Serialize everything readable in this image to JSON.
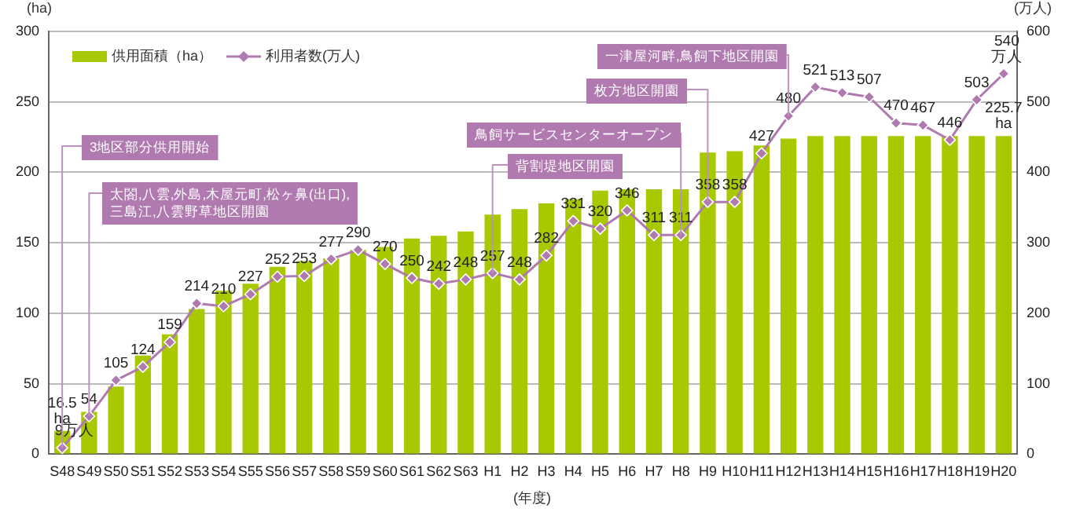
{
  "chart_data": {
    "type": "bar",
    "ylabel": "(ha)",
    "y2label": "(万人)",
    "xlabel": "(年度)",
    "categories": [
      "S48",
      "S49",
      "S50",
      "S51",
      "S52",
      "S53",
      "S54",
      "S55",
      "S56",
      "S57",
      "S58",
      "S59",
      "S60",
      "S61",
      "S62",
      "S63",
      "H1",
      "H2",
      "H3",
      "H4",
      "H5",
      "H6",
      "H7",
      "H8",
      "H9",
      "H10",
      "H11",
      "H12",
      "H13",
      "H14",
      "H15",
      "H16",
      "H17",
      "H18",
      "H19",
      "H20"
    ],
    "series": [
      {
        "name": "供用面積（ha）",
        "color": "#a8c800",
        "values": [
          16.5,
          30,
          48,
          70,
          85,
          103,
          116,
          121,
          133,
          137,
          139,
          145,
          147,
          153,
          155,
          158,
          170,
          174,
          178,
          181,
          187,
          188,
          188,
          188,
          214,
          215,
          219,
          224,
          225.7,
          225.7,
          225.7,
          225.7,
          225.7,
          225.7,
          225.7,
          225.7
        ],
        "value_labels": [
          "16.5 ha",
          null,
          null,
          null,
          null,
          null,
          null,
          null,
          null,
          null,
          null,
          null,
          null,
          null,
          null,
          null,
          null,
          null,
          null,
          null,
          null,
          null,
          null,
          null,
          null,
          null,
          null,
          null,
          null,
          null,
          null,
          null,
          null,
          null,
          null,
          "225.7 ha"
        ]
      },
      {
        "name": "利用者数(万人)",
        "type": "line",
        "axis": "y2",
        "color": "#b07ab0",
        "values": [
          9,
          54,
          105,
          124,
          159,
          214,
          210,
          227,
          252,
          253,
          277,
          290,
          270,
          250,
          242,
          248,
          257,
          248,
          282,
          331,
          320,
          346,
          311,
          311,
          358,
          358,
          427,
          480,
          521,
          513,
          507,
          470,
          467,
          446,
          503,
          540
        ],
        "value_labels": [
          "9万人",
          "54",
          "105",
          "124",
          "159",
          "214",
          "210",
          "227",
          "252",
          "253",
          "277",
          "290",
          "270",
          "250",
          "242",
          "248",
          "257",
          "248",
          "282",
          "331",
          "320",
          "346",
          "311",
          "311",
          "358",
          "358",
          "427",
          "480",
          "521",
          "513",
          "507",
          "470",
          "467",
          "446",
          "503",
          "540 万人"
        ]
      }
    ],
    "ylim": [
      0,
      300
    ],
    "yticks": [
      0,
      50,
      100,
      150,
      200,
      250,
      300
    ],
    "y2lim": [
      0,
      600
    ],
    "y2ticks": [
      0,
      100,
      200,
      300,
      400,
      500,
      600
    ],
    "grid": "y",
    "legend": "top left",
    "marker": "diamond",
    "line_style": "solid",
    "annotations": [
      {
        "text": "3地区部分供用開始",
        "x": "S48",
        "y": 4.5
      },
      {
        "text": "太閤,八雲,外島,木屋元町,松ヶ鼻(出口),\n三島江,八雲野草地区開園",
        "x": "S49",
        "y": 27
      },
      {
        "text": "背割堤地区開園",
        "x": "H1",
        "y": 128.5
      },
      {
        "text": "鳥飼サービスセンターオープン",
        "x": "H8",
        "y": 155.5
      },
      {
        "text": "枚方地区開園",
        "x": "H9",
        "y": 179
      },
      {
        "text": "一津屋河畔,鳥飼下地区開園",
        "x": "H12",
        "y": 240
      }
    ]
  }
}
